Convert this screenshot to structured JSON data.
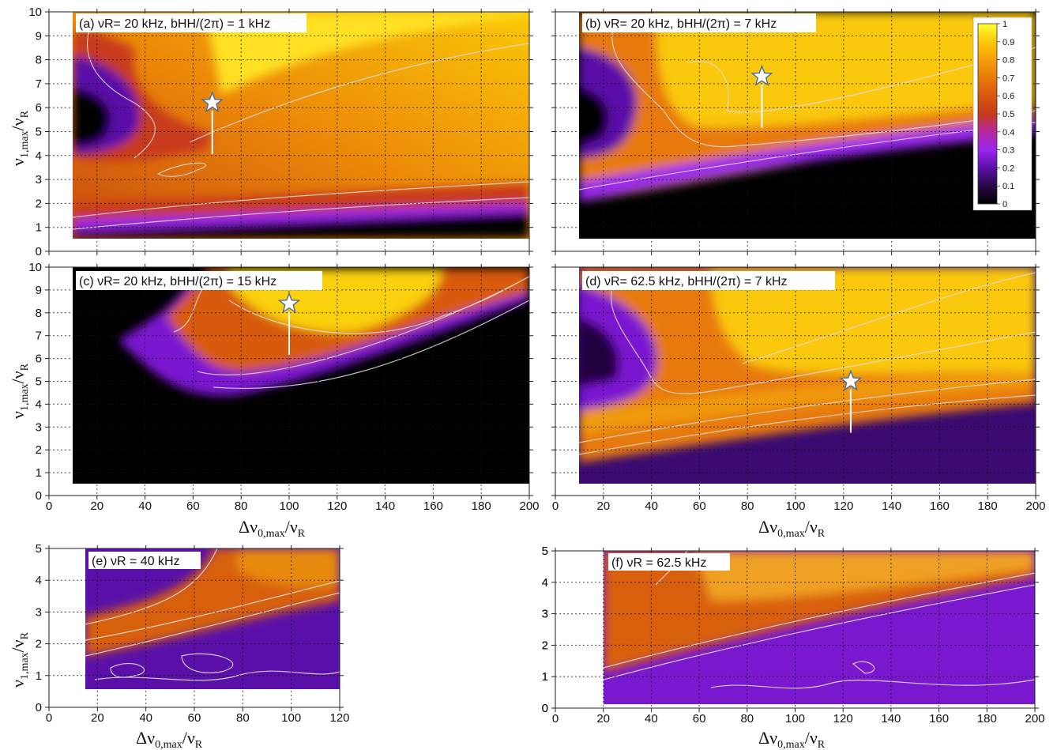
{
  "chart_data": [
    {
      "id": "a",
      "type": "heatmap",
      "title": "(a) νR= 20 kHz, bHH/(2π) = 1 kHz",
      "x_ticks": [
        "0",
        "20",
        "40",
        "60",
        "80",
        "100",
        "120",
        "140",
        "160",
        "180",
        "200"
      ],
      "y_ticks": [
        "0",
        "1",
        "2",
        "3",
        "4",
        "5",
        "6",
        "7",
        "8",
        "9",
        "10"
      ],
      "xlim": [
        0,
        200
      ],
      "ylim": [
        0,
        10
      ],
      "grid": true,
      "optimum_star": {
        "x": 68,
        "y": 6.2
      }
    },
    {
      "id": "b",
      "type": "heatmap",
      "title": "(b) νR= 20 kHz, bHH/(2π) = 7 kHz",
      "x_ticks": [
        "0",
        "20",
        "40",
        "60",
        "80",
        "100",
        "120",
        "140",
        "160",
        "180",
        "200"
      ],
      "y_ticks": [
        "0",
        "1",
        "2",
        "3",
        "4",
        "5",
        "6",
        "7",
        "8",
        "9",
        "10"
      ],
      "xlim": [
        0,
        200
      ],
      "ylim": [
        0,
        10
      ],
      "grid": true,
      "optimum_star": {
        "x": 86,
        "y": 7.3
      }
    },
    {
      "id": "c",
      "type": "heatmap",
      "title": "(c) νR= 20 kHz, bHH/(2π) = 15 kHz",
      "x_ticks": [
        "0",
        "20",
        "40",
        "60",
        "80",
        "100",
        "120",
        "140",
        "160",
        "180",
        "200"
      ],
      "y_ticks": [
        "0",
        "1",
        "2",
        "3",
        "4",
        "5",
        "6",
        "7",
        "8",
        "9",
        "10"
      ],
      "xlim": [
        0,
        200
      ],
      "ylim": [
        0,
        10
      ],
      "grid": true,
      "optimum_star": {
        "x": 100,
        "y": 8.4
      }
    },
    {
      "id": "d",
      "type": "heatmap",
      "title": "(d) νR= 62.5 kHz, bHH/(2π) = 7 kHz",
      "x_ticks": [
        "0",
        "20",
        "40",
        "60",
        "80",
        "100",
        "120",
        "140",
        "160",
        "180",
        "200"
      ],
      "y_ticks": [
        "0",
        "1",
        "2",
        "3",
        "4",
        "5",
        "6",
        "7",
        "8",
        "9",
        "10"
      ],
      "xlim": [
        0,
        200
      ],
      "ylim": [
        0,
        10
      ],
      "grid": true,
      "optimum_star": {
        "x": 123,
        "y": 5.0
      }
    },
    {
      "id": "e",
      "type": "heatmap",
      "title": "(e) νR = 40 kHz",
      "x_ticks": [
        "0",
        "20",
        "40",
        "60",
        "80",
        "100",
        "120"
      ],
      "y_ticks": [
        "0",
        "1",
        "2",
        "3",
        "4",
        "5"
      ],
      "xlim": [
        0,
        120
      ],
      "ylim": [
        0,
        5
      ],
      "grid": true
    },
    {
      "id": "f",
      "type": "heatmap",
      "title": "(f) νR = 62.5 kHz",
      "x_ticks": [
        "0",
        "20",
        "40",
        "60",
        "80",
        "100",
        "120",
        "140",
        "160",
        "180",
        "200"
      ],
      "y_ticks": [
        "0",
        "1",
        "2",
        "3",
        "4",
        "5"
      ],
      "xlim": [
        0,
        200
      ],
      "ylim": [
        0,
        5
      ],
      "grid": true
    }
  ],
  "colorbar": {
    "ticks": [
      "1",
      "0.9",
      "0.8",
      "0.7",
      "0.6",
      "0.5",
      "0.4",
      "0.3",
      "0.2",
      "0.1",
      "0"
    ],
    "range": [
      0,
      1
    ],
    "colors": [
      "#000000",
      "#2a0848",
      "#5a10a8",
      "#9a25f0",
      "#b828a0",
      "#c83a1a",
      "#d8580e",
      "#e87a08",
      "#f59e0a",
      "#fbc808",
      "#ffff33"
    ]
  },
  "axis_labels": {
    "y_main": "ν",
    "y_sub": "1,max",
    "y_tail": "/ν",
    "y_tail_sub": "R",
    "x_main": "Δν",
    "x_sub": "0,max",
    "x_tail": "/ν",
    "x_tail_sub": "R"
  }
}
